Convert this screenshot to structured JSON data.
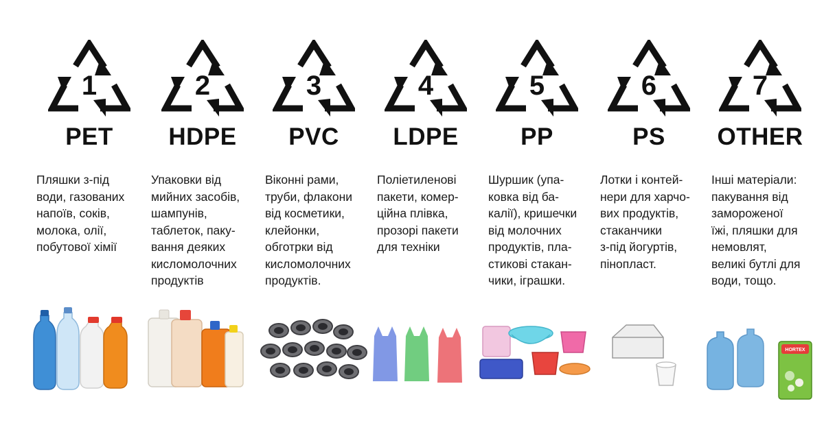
{
  "plastics": [
    {
      "number": "1",
      "code": "PET",
      "description": "Пляшки з-під\nводи, газованих\nнапоїв, соків,\nмолока, олії,\nпобутової хімії",
      "items_icon": "plastic-bottles-icon"
    },
    {
      "number": "2",
      "code": "HDPE",
      "description": "Упаковки від\nмийних засобів,\nшампунів,\nтаблеток, паку-\nвання деяких\nкисломолочних\nпродуктів",
      "items_icon": "detergent-containers-icon"
    },
    {
      "number": "3",
      "code": "PVC",
      "description": "Віконні рами,\nтруби, флакони\nвід косметики,\nклейонки,\nобготрки від\nкисломолочних\nпродуктів.",
      "items_icon": "pvc-pipes-icon"
    },
    {
      "number": "4",
      "code": "LDPE",
      "description": "Поліетиленові\nпакети, комер-\nційна плівка,\nпрозорі пакети\nдля техніки",
      "items_icon": "plastic-bags-icon"
    },
    {
      "number": "5",
      "code": "PP",
      "description": "Шуршик (упа-\nковка від ба-\nкалії), кришечки\nвід молочних\nпродуктів, пла-\nстикові стакан-\nчики, іграшки.",
      "items_icon": "household-containers-icon"
    },
    {
      "number": "6",
      "code": "PS",
      "description": "Лотки і контей-\nнери для харчо-\nвих продуктів,\nстаканчики\nз-під йогуртів,\nпінопласт.",
      "items_icon": "food-containers-icon"
    },
    {
      "number": "7",
      "code": "OTHER",
      "description": "Інші матеріали:\nпакування від\nзамороженої\nїжі, пляшки для\nнемовлят,\nвеликі бутлі для\nводи, тощо.",
      "items_icon": "water-jugs-and-frozen-pack-icon"
    }
  ],
  "logo_text": "HORTEX",
  "colors": {
    "text": "#111111",
    "background": "#ffffff",
    "bottle_blue": "#5fa6dc",
    "bottle_orange": "#f08c1e",
    "pipe_gray": "#6e6e72",
    "bag_blue": "#6b86e0",
    "bag_green": "#58c46a",
    "bag_red": "#ea5a62",
    "basin_cyan": "#6fd6e8",
    "bucket_pink": "#f06aa8",
    "bucket_red": "#e8453e",
    "frozen_green": "#7dc243"
  }
}
